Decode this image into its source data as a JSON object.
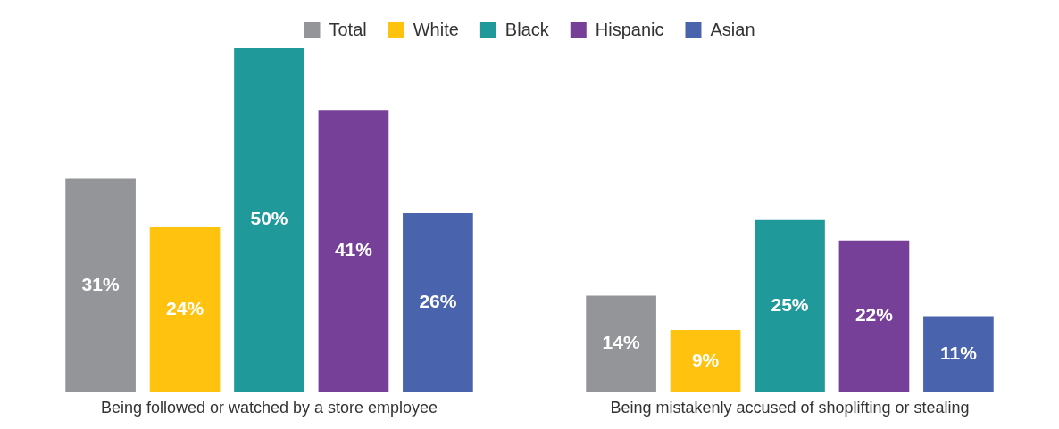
{
  "chart_data": {
    "type": "bar",
    "categories": [
      "Being followed or watched by a store employee",
      "Being mistakenly accused of shoplifting or stealing"
    ],
    "series": [
      {
        "name": "Total",
        "color": "#939598",
        "values": [
          31,
          14
        ],
        "value_labels": [
          "31%",
          "14%"
        ]
      },
      {
        "name": "White",
        "color": "#ffc20e",
        "values": [
          24,
          9
        ],
        "value_labels": [
          "24%",
          "9%"
        ]
      },
      {
        "name": "Black",
        "color": "#20999b",
        "values": [
          50,
          25
        ],
        "value_labels": [
          "50%",
          "25%"
        ]
      },
      {
        "name": "Hispanic",
        "color": "#763f98",
        "values": [
          41,
          22
        ],
        "value_labels": [
          "41%",
          "22%"
        ]
      },
      {
        "name": "Asian",
        "color": "#4a63ad",
        "values": [
          26,
          11
        ],
        "value_labels": [
          "26%",
          "11%"
        ]
      }
    ],
    "legend": "top",
    "tick_labels": "x"
  }
}
